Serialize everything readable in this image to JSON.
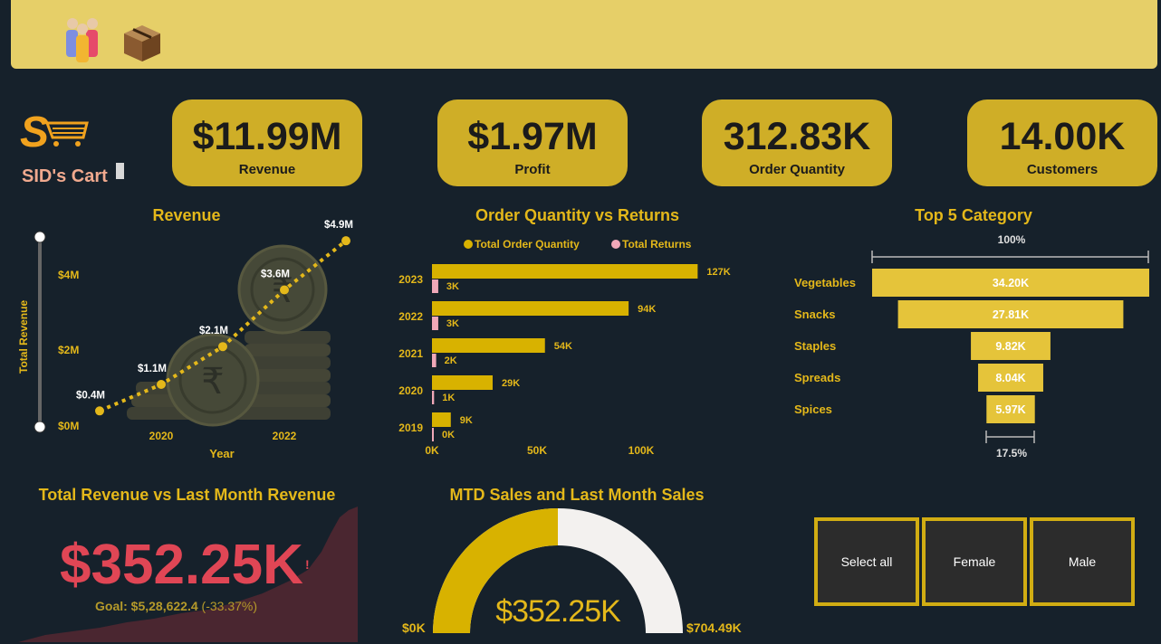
{
  "header": {
    "icons": [
      "people-icon",
      "package-icon"
    ]
  },
  "brand": {
    "name": "SID's Cart",
    "icon": "shopping-cart-logo"
  },
  "kpis": [
    {
      "value": "$11.99M",
      "label": "Revenue"
    },
    {
      "value": "$1.97M",
      "label": "Profit"
    },
    {
      "value": "312.83K",
      "label": "Order Quantity"
    },
    {
      "value": "14.00K",
      "label": "Customers"
    }
  ],
  "revenue_chart": {
    "title": "Revenue",
    "ylabel": "Total Revenue",
    "xlabel": "Year",
    "yticks": [
      "$0M",
      "$2M",
      "$4M"
    ],
    "xticks": [
      "2020",
      "2022"
    ],
    "point_labels": [
      "$0.4M",
      "$1.1M",
      "$2.1M",
      "$3.6M",
      "$4.9M"
    ]
  },
  "orders_chart": {
    "title": "Order Quantity vs Returns",
    "legend": [
      "Total Order Quantity",
      "Total Returns"
    ],
    "xticks": [
      "0K",
      "50K",
      "100K"
    ]
  },
  "category_chart": {
    "title": "Top 5 Category",
    "top_pct": "100%",
    "bottom_pct": "17.5%"
  },
  "revenue_vs_last": {
    "title": "Total Revenue vs Last Month Revenue",
    "value": "$352.25K",
    "marker": "!",
    "goal_label": "Goal: $5,28,622.4",
    "goal_delta": "(-33.37%)"
  },
  "gauge": {
    "title": "MTD Sales and Last Month Sales",
    "value": "$352.25K",
    "min": "$0K",
    "max": "$704.49K",
    "fraction": 0.5
  },
  "slicer": {
    "options": [
      "Select all",
      "Female",
      "Male"
    ]
  },
  "colors": {
    "gold": "#d8b200",
    "returns": "#f0a8b8",
    "bar_light": "#e5c43a",
    "kpi_bg": "#cfae27",
    "bg": "#16212b",
    "red": "#e04655"
  },
  "chart_data": [
    {
      "type": "line",
      "title": "Revenue",
      "xlabel": "Year",
      "ylabel": "Total Revenue",
      "x": [
        "2019",
        "2020",
        "2021",
        "2022",
        "2023"
      ],
      "values": [
        0.4,
        1.1,
        2.1,
        3.6,
        4.9
      ],
      "ylim": [
        0,
        5
      ]
    },
    {
      "type": "bar",
      "title": "Order Quantity vs Returns",
      "orientation": "horizontal",
      "categories": [
        "2023",
        "2022",
        "2021",
        "2020",
        "2019"
      ],
      "series": [
        {
          "name": "Total Order Quantity",
          "values": [
            127,
            94,
            54,
            29,
            9
          ],
          "labels": [
            "127K",
            "94K",
            "54K",
            "29K",
            "9K"
          ]
        },
        {
          "name": "Total Returns",
          "values": [
            3,
            3,
            2,
            1,
            0
          ],
          "labels": [
            "3K",
            "3K",
            "2K",
            "1K",
            "0K"
          ]
        }
      ],
      "xlim": [
        0,
        130
      ],
      "legend": "top"
    },
    {
      "type": "bar",
      "title": "Top 5 Category",
      "subtype": "funnel",
      "categories": [
        "Vegetables",
        "Snacks",
        "Staples",
        "Spreads",
        "Spices"
      ],
      "values": [
        34.2,
        27.81,
        9.82,
        8.04,
        5.97
      ],
      "labels": [
        "34.20K",
        "27.81K",
        "9.82K",
        "8.04K",
        "5.97K"
      ]
    }
  ]
}
